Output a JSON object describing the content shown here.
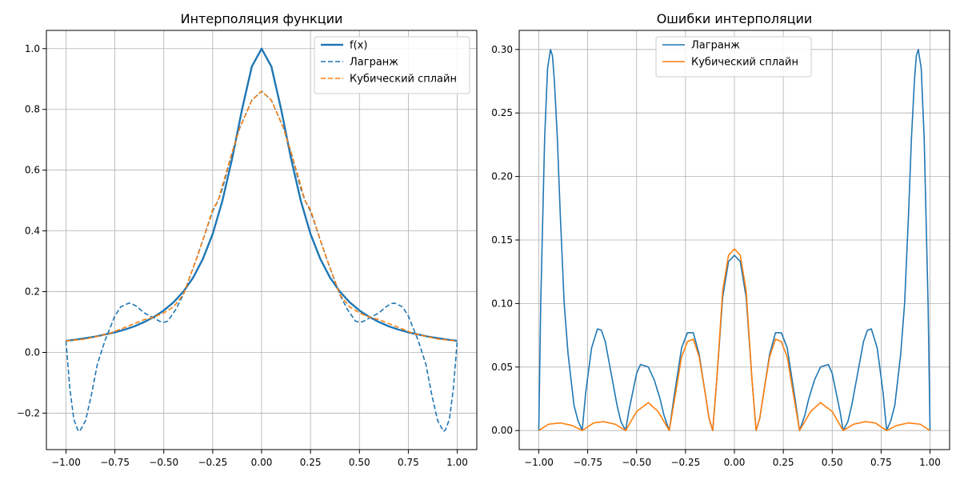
{
  "chart_data": [
    {
      "type": "line",
      "title": "Интерполяция функции",
      "xlabel": "",
      "ylabel": "",
      "xlim": [
        -1.1,
        1.1
      ],
      "ylim": [
        -0.32,
        1.06
      ],
      "x_ticks": [
        -1.0,
        -0.75,
        -0.5,
        -0.25,
        0.0,
        0.25,
        0.5,
        0.75,
        1.0
      ],
      "x_tick_labels": [
        "−1.00",
        "−0.75",
        "−0.50",
        "−0.25",
        "0.00",
        "0.25",
        "0.50",
        "0.75",
        "1.00"
      ],
      "y_ticks": [
        -0.2,
        0.0,
        0.2,
        0.4,
        0.6,
        0.8,
        1.0
      ],
      "y_tick_labels": [
        "−0.2",
        "0.0",
        "0.2",
        "0.4",
        "0.6",
        "0.8",
        "1.0"
      ],
      "grid": true,
      "legend_position": "top-right",
      "series": [
        {
          "name": "f(x)",
          "color": "#1f77b4",
          "style": "solid",
          "x": [
            -1.0,
            -0.95,
            -0.9,
            -0.85,
            -0.8,
            -0.75,
            -0.7,
            -0.65,
            -0.6,
            -0.55,
            -0.5,
            -0.45,
            -0.4,
            -0.35,
            -0.3,
            -0.25,
            -0.2,
            -0.15,
            -0.1,
            -0.05,
            0.0,
            0.05,
            0.1,
            0.15,
            0.2,
            0.25,
            0.3,
            0.35,
            0.4,
            0.45,
            0.5,
            0.55,
            0.6,
            0.65,
            0.7,
            0.75,
            0.8,
            0.85,
            0.9,
            0.95,
            1.0
          ],
          "y": [
            0.038,
            0.042,
            0.047,
            0.052,
            0.059,
            0.066,
            0.075,
            0.086,
            0.1,
            0.117,
            0.138,
            0.165,
            0.2,
            0.246,
            0.308,
            0.39,
            0.5,
            0.64,
            0.8,
            0.941,
            1.0,
            0.941,
            0.8,
            0.64,
            0.5,
            0.39,
            0.308,
            0.246,
            0.2,
            0.165,
            0.138,
            0.117,
            0.1,
            0.086,
            0.075,
            0.066,
            0.059,
            0.052,
            0.047,
            0.042,
            0.038
          ]
        },
        {
          "name": "Лагранж",
          "color": "#1f77b4",
          "style": "dashed",
          "x": [
            -1.0,
            -0.98,
            -0.96,
            -0.94,
            -0.93,
            -0.9,
            -0.87,
            -0.84,
            -0.8,
            -0.778,
            -0.75,
            -0.72,
            -0.68,
            -0.666,
            -0.64,
            -0.6,
            -0.556,
            -0.52,
            -0.5,
            -0.48,
            -0.44,
            -0.4,
            -0.333,
            -0.3,
            -0.25,
            -0.222,
            -0.2,
            -0.15,
            -0.111,
            -0.05,
            0.0,
            0.05,
            0.111,
            0.15,
            0.2,
            0.222,
            0.25,
            0.3,
            0.333,
            0.4,
            0.44,
            0.48,
            0.5,
            0.52,
            0.556,
            0.6,
            0.64,
            0.666,
            0.68,
            0.72,
            0.75,
            0.778,
            0.8,
            0.84,
            0.87,
            0.9,
            0.93,
            0.94,
            0.96,
            0.98,
            1.0
          ],
          "y": [
            0.038,
            -0.12,
            -0.22,
            -0.255,
            -0.26,
            -0.225,
            -0.14,
            -0.04,
            0.04,
            0.075,
            0.12,
            0.15,
            0.162,
            0.161,
            0.152,
            0.13,
            0.115,
            0.102,
            0.099,
            0.103,
            0.14,
            0.19,
            0.308,
            0.37,
            0.465,
            0.5,
            0.54,
            0.66,
            0.74,
            0.83,
            0.86,
            0.83,
            0.74,
            0.66,
            0.54,
            0.5,
            0.465,
            0.37,
            0.308,
            0.19,
            0.14,
            0.103,
            0.099,
            0.102,
            0.115,
            0.13,
            0.152,
            0.161,
            0.162,
            0.15,
            0.12,
            0.075,
            0.04,
            -0.04,
            -0.14,
            -0.225,
            -0.26,
            -0.255,
            -0.22,
            -0.12,
            0.038
          ]
        },
        {
          "name": "Кубический сплайн",
          "color": "#ff7f0e",
          "style": "dashed",
          "x": [
            -1.0,
            -0.9,
            -0.778,
            -0.7,
            -0.6,
            -0.556,
            -0.5,
            -0.45,
            -0.4,
            -0.333,
            -0.3,
            -0.25,
            -0.222,
            -0.2,
            -0.15,
            -0.111,
            -0.05,
            0.0,
            0.05,
            0.111,
            0.15,
            0.2,
            0.222,
            0.25,
            0.3,
            0.333,
            0.4,
            0.45,
            0.5,
            0.556,
            0.6,
            0.7,
            0.778,
            0.9,
            1.0
          ],
          "y": [
            0.038,
            0.044,
            0.062,
            0.082,
            0.108,
            0.115,
            0.13,
            0.15,
            0.19,
            0.308,
            0.37,
            0.47,
            0.5,
            0.55,
            0.66,
            0.74,
            0.83,
            0.86,
            0.83,
            0.74,
            0.66,
            0.55,
            0.5,
            0.47,
            0.37,
            0.308,
            0.19,
            0.15,
            0.13,
            0.115,
            0.108,
            0.082,
            0.062,
            0.044,
            0.038
          ]
        }
      ]
    },
    {
      "type": "line",
      "title": "Ошибки интерполяции",
      "xlabel": "",
      "ylabel": "",
      "xlim": [
        -1.1,
        1.1
      ],
      "ylim": [
        -0.015,
        0.315
      ],
      "x_ticks": [
        -1.0,
        -0.75,
        -0.5,
        -0.25,
        0.0,
        0.25,
        0.5,
        0.75,
        1.0
      ],
      "x_tick_labels": [
        "−1.00",
        "−0.75",
        "−0.50",
        "−0.25",
        "0.00",
        "0.25",
        "0.50",
        "0.75",
        "1.00"
      ],
      "y_ticks": [
        0.0,
        0.05,
        0.1,
        0.15,
        0.2,
        0.25,
        0.3
      ],
      "y_tick_labels": [
        "0.00",
        "0.05",
        "0.10",
        "0.15",
        "0.20",
        "0.25",
        "0.30"
      ],
      "grid": true,
      "legend_position": "top-center",
      "series": [
        {
          "name": "Лагранж",
          "color": "#1f77b4",
          "style": "solid",
          "x": [
            -1.0,
            -0.99,
            -0.97,
            -0.955,
            -0.94,
            -0.93,
            -0.92,
            -0.905,
            -0.89,
            -0.87,
            -0.85,
            -0.82,
            -0.8,
            -0.778,
            -0.76,
            -0.73,
            -0.7,
            -0.68,
            -0.66,
            -0.63,
            -0.6,
            -0.58,
            -0.556,
            -0.54,
            -0.5,
            -0.48,
            -0.44,
            -0.41,
            -0.38,
            -0.36,
            -0.333,
            -0.31,
            -0.27,
            -0.24,
            -0.21,
            -0.18,
            -0.15,
            -0.13,
            -0.111,
            -0.09,
            -0.06,
            -0.03,
            0.0,
            0.03,
            0.06,
            0.09,
            0.111,
            0.13,
            0.15,
            0.18,
            0.21,
            0.24,
            0.27,
            0.31,
            0.333,
            0.36,
            0.38,
            0.41,
            0.44,
            0.48,
            0.5,
            0.54,
            0.556,
            0.58,
            0.6,
            0.63,
            0.66,
            0.68,
            0.7,
            0.73,
            0.76,
            0.778,
            0.8,
            0.82,
            0.85,
            0.87,
            0.89,
            0.905,
            0.92,
            0.93,
            0.94,
            0.955,
            0.97,
            0.99,
            1.0
          ],
          "y": [
            0.0,
            0.1,
            0.23,
            0.285,
            0.3,
            0.295,
            0.275,
            0.23,
            0.17,
            0.1,
            0.06,
            0.02,
            0.008,
            0.0,
            0.03,
            0.065,
            0.08,
            0.079,
            0.07,
            0.045,
            0.02,
            0.007,
            0.0,
            0.015,
            0.045,
            0.052,
            0.05,
            0.04,
            0.025,
            0.012,
            0.0,
            0.025,
            0.065,
            0.077,
            0.077,
            0.06,
            0.03,
            0.01,
            0.0,
            0.04,
            0.105,
            0.133,
            0.138,
            0.133,
            0.105,
            0.04,
            0.0,
            0.01,
            0.03,
            0.06,
            0.077,
            0.077,
            0.065,
            0.025,
            0.0,
            0.012,
            0.025,
            0.04,
            0.05,
            0.052,
            0.045,
            0.015,
            0.0,
            0.007,
            0.02,
            0.045,
            0.07,
            0.079,
            0.08,
            0.065,
            0.03,
            0.0,
            0.008,
            0.02,
            0.06,
            0.1,
            0.17,
            0.23,
            0.275,
            0.295,
            0.3,
            0.285,
            0.23,
            0.1,
            0.0
          ]
        },
        {
          "name": "Кубический сплайн",
          "color": "#ff7f0e",
          "style": "solid",
          "x": [
            -1.0,
            -0.95,
            -0.89,
            -0.83,
            -0.778,
            -0.72,
            -0.67,
            -0.61,
            -0.556,
            -0.5,
            -0.44,
            -0.39,
            -0.333,
            -0.3,
            -0.27,
            -0.24,
            -0.21,
            -0.18,
            -0.15,
            -0.13,
            -0.111,
            -0.09,
            -0.06,
            -0.03,
            0.0,
            0.03,
            0.06,
            0.09,
            0.111,
            0.13,
            0.15,
            0.18,
            0.21,
            0.24,
            0.27,
            0.3,
            0.333,
            0.39,
            0.44,
            0.5,
            0.556,
            0.61,
            0.67,
            0.72,
            0.778,
            0.83,
            0.89,
            0.95,
            1.0
          ],
          "y": [
            0.0,
            0.005,
            0.006,
            0.004,
            0.0,
            0.006,
            0.007,
            0.005,
            0.0,
            0.015,
            0.022,
            0.015,
            0.0,
            0.03,
            0.058,
            0.07,
            0.072,
            0.058,
            0.03,
            0.01,
            0.0,
            0.04,
            0.11,
            0.138,
            0.143,
            0.138,
            0.11,
            0.04,
            0.0,
            0.01,
            0.03,
            0.058,
            0.072,
            0.07,
            0.058,
            0.03,
            0.0,
            0.015,
            0.022,
            0.015,
            0.0,
            0.005,
            0.007,
            0.006,
            0.0,
            0.004,
            0.006,
            0.005,
            0.0
          ]
        }
      ]
    }
  ]
}
